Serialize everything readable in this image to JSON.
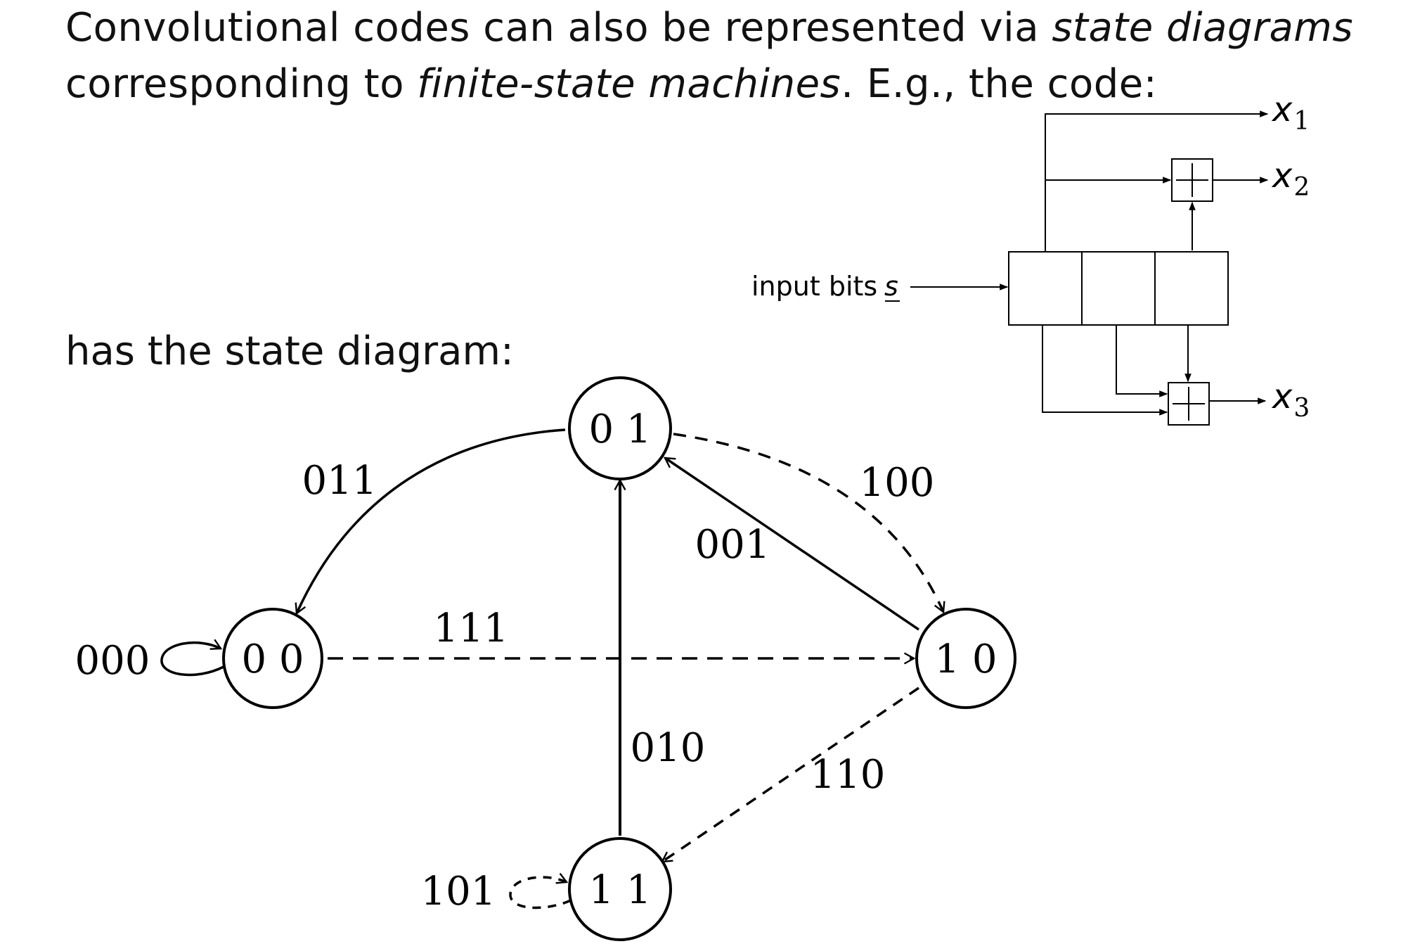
{
  "intro": {
    "line1_plain": "Convolutional codes can also be represented via ",
    "line1_em": "state diagrams",
    "line2_plain_a": "corresponding to ",
    "line2_em": "finite-state machines",
    "line2_plain_b": ". E.g., the code:"
  },
  "has_state_diagram": "has the state diagram:",
  "encoder": {
    "input_label": "input bits",
    "input_symbol": "s",
    "outputs": [
      {
        "var": "x",
        "sub": "1"
      },
      {
        "var": "x",
        "sub": "2"
      },
      {
        "var": "x",
        "sub": "3"
      }
    ],
    "adder_symbol": "+"
  },
  "state_diagram": {
    "states": [
      "0 0",
      "0 1",
      "1 0",
      "1 1"
    ],
    "transitions": [
      {
        "from": "00",
        "to": "00",
        "label": "000",
        "input": "0"
      },
      {
        "from": "00",
        "to": "10",
        "label": "111",
        "input": "1"
      },
      {
        "from": "01",
        "to": "00",
        "label": "011",
        "input": "0"
      },
      {
        "from": "01",
        "to": "10",
        "label": "100",
        "input": "1"
      },
      {
        "from": "10",
        "to": "01",
        "label": "001",
        "input": "0"
      },
      {
        "from": "10",
        "to": "11",
        "label": "110",
        "input": "1"
      },
      {
        "from": "11",
        "to": "01",
        "label": "010",
        "input": "0"
      },
      {
        "from": "11",
        "to": "11",
        "label": "101",
        "input": "1"
      }
    ]
  }
}
